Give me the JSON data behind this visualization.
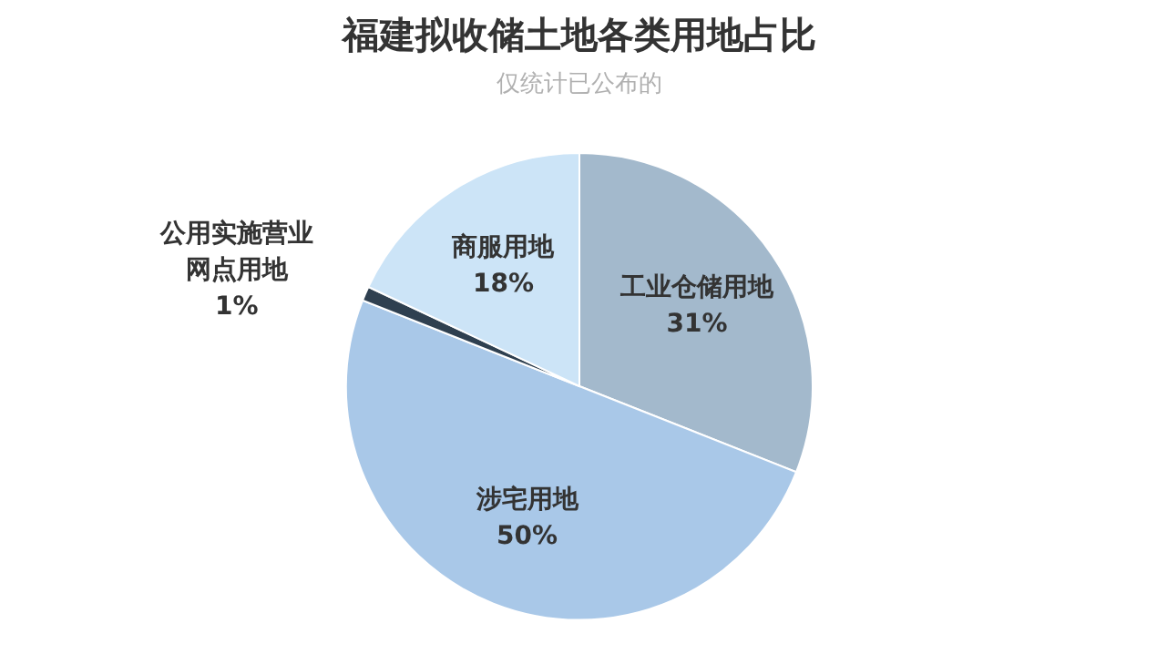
{
  "chart_data": {
    "type": "pie",
    "title": "福建拟收储土地各类用地占比",
    "subtitle": "仅统计已公布的",
    "categories": [
      "工业仓储用地",
      "涉宅用地",
      "公用实施营业网点用地",
      "商服用地"
    ],
    "values": [
      31,
      50,
      1,
      18
    ],
    "value_labels": [
      "31%",
      "50%",
      "1%",
      "18%"
    ],
    "colors": [
      "#a3b9cc",
      "#a9c8e8",
      "#2f4050",
      "#cce4f7"
    ]
  }
}
